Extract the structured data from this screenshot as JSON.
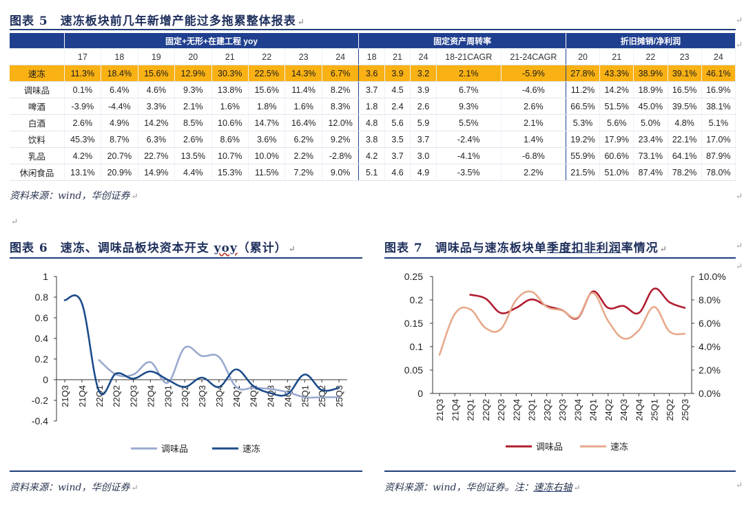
{
  "fig5": {
    "title": "图表 5　速冻板块前几年新增产能过多拖累整体报表",
    "group_headers": [
      "固定+无形+在建工程 yoy",
      "固定资产周转率",
      "折旧摊销/净利润"
    ],
    "col_headers": [
      "17",
      "18",
      "19",
      "20",
      "21",
      "22",
      "23",
      "24",
      "18",
      "21",
      "24",
      "18-21CAGR",
      "21-24CAGR",
      "20",
      "21",
      "22",
      "23",
      "24"
    ],
    "rows": [
      {
        "label": "速冻",
        "cells": [
          "11.3%",
          "18.4%",
          "15.6%",
          "12.9%",
          "30.3%",
          "22.5%",
          "14.3%",
          "6.7%",
          "3.6",
          "3.9",
          "3.2",
          "2.1%",
          "-5.9%",
          "27.8%",
          "43.3%",
          "38.9%",
          "39.1%",
          "46.1%"
        ]
      },
      {
        "label": "调味品",
        "cells": [
          "0.1%",
          "6.4%",
          "4.6%",
          "9.3%",
          "13.8%",
          "15.6%",
          "11.4%",
          "8.2%",
          "3.7",
          "4.5",
          "3.9",
          "6.7%",
          "-4.6%",
          "11.2%",
          "14.2%",
          "18.9%",
          "16.5%",
          "16.9%"
        ]
      },
      {
        "label": "啤酒",
        "cells": [
          "-3.9%",
          "-4.4%",
          "3.3%",
          "2.1%",
          "1.6%",
          "1.8%",
          "1.6%",
          "8.3%",
          "1.8",
          "2.4",
          "2.6",
          "9.3%",
          "2.6%",
          "66.5%",
          "51.5%",
          "45.0%",
          "39.5%",
          "38.1%"
        ]
      },
      {
        "label": "白酒",
        "cells": [
          "2.6%",
          "4.9%",
          "14.2%",
          "8.5%",
          "10.6%",
          "14.7%",
          "16.4%",
          "12.0%",
          "4.8",
          "5.6",
          "5.9",
          "5.5%",
          "2.1%",
          "5.3%",
          "5.6%",
          "5.0%",
          "4.8%",
          "5.1%"
        ]
      },
      {
        "label": "饮料",
        "cells": [
          "45.3%",
          "8.7%",
          "6.3%",
          "2.6%",
          "8.6%",
          "3.6%",
          "6.2%",
          "9.2%",
          "3.8",
          "3.5",
          "3.7",
          "-2.4%",
          "1.4%",
          "19.2%",
          "17.9%",
          "23.4%",
          "22.1%",
          "17.0%"
        ]
      },
      {
        "label": "乳品",
        "cells": [
          "4.2%",
          "20.7%",
          "22.7%",
          "13.5%",
          "10.7%",
          "10.0%",
          "2.2%",
          "-2.8%",
          "4.2",
          "3.7",
          "3.0",
          "-4.1%",
          "-6.8%",
          "55.9%",
          "60.6%",
          "73.1%",
          "64.1%",
          "87.9%"
        ]
      },
      {
        "label": "休闲食品",
        "cells": [
          "13.1%",
          "20.9%",
          "14.9%",
          "4.4%",
          "15.3%",
          "11.5%",
          "7.2%",
          "9.0%",
          "5.1",
          "4.6",
          "4.9",
          "-3.5%",
          "2.2%",
          "21.5%",
          "51.0%",
          "87.4%",
          "78.2%",
          "78.0%"
        ]
      }
    ],
    "source": "资料来源：wind，华创证券",
    "highlight_color": "#f9b114",
    "header_color": "#1f3f8f"
  },
  "fig6": {
    "title_prefix": "图表 6　速冻、调味品板块资本开支 ",
    "title_yoy": "yoy",
    "title_suffix": "（累计）",
    "source": "资料来源：wind，华创证券"
  },
  "fig7": {
    "title_prefix": "图表 7　调味品与速冻板块单",
    "title_link": "季度扣非利润",
    "title_suffix": "率情况",
    "source_prefix": "资料来源：wind，华创证券。注：",
    "source_link": "速冻右轴"
  },
  "return_mark": "↵",
  "chart_data": [
    {
      "type": "line",
      "title": "速冻、调味品板块资本开支 yoy（累计）",
      "categories": [
        "21Q3",
        "21Q4",
        "22Q1",
        "22Q2",
        "22Q3",
        "22Q4",
        "23Q1",
        "23Q2",
        "23Q3",
        "23Q4",
        "24Q1",
        "24Q2",
        "24Q3",
        "24Q4",
        "25Q1",
        "25Q2",
        "25Q3"
      ],
      "ylim": [
        -0.4,
        1
      ],
      "yticks": [
        "1",
        "0.8",
        "0.6",
        "0.4",
        "0.2",
        "0",
        "-0.2",
        "-0.4"
      ],
      "series": [
        {
          "name": "调味品",
          "color": "#9aa9cf",
          "values": [
            null,
            null,
            0.19,
            0.05,
            0.05,
            0.17,
            -0.03,
            0.31,
            0.23,
            0.22,
            -0.07,
            -0.08,
            -0.09,
            -0.12,
            -0.17,
            -0.17,
            -0.17
          ]
        },
        {
          "name": "速冻",
          "color": "#1b4b8a",
          "values": [
            0.77,
            0.74,
            -0.11,
            0.06,
            0.01,
            0.08,
            0.0,
            -0.07,
            0.02,
            -0.07,
            0.1,
            -0.06,
            -0.13,
            -0.14,
            0.05,
            -0.1,
            -0.08
          ]
        }
      ]
    },
    {
      "type": "line",
      "title": "调味品与速冻板块单季度扣非利润率情况",
      "categories": [
        "21Q3",
        "21Q4",
        "22Q1",
        "22Q2",
        "22Q3",
        "22Q4",
        "23Q1",
        "23Q2",
        "23Q3",
        "23Q4",
        "24Q1",
        "24Q2",
        "24Q3",
        "24Q4",
        "25Q1",
        "25Q2",
        "25Q3"
      ],
      "ylim_left": [
        0,
        0.25
      ],
      "yticks_left": [
        "0.25",
        "0.2",
        "0.15",
        "0.1",
        "0.05",
        "0"
      ],
      "ylim_right": [
        0,
        10
      ],
      "yticks_right": [
        "10.0%",
        "8.0%",
        "6.0%",
        "4.0%",
        "2.0%",
        "0.0%"
      ],
      "series": [
        {
          "name": "调味品",
          "axis": "left",
          "color": "#b01c2e",
          "values": [
            null,
            null,
            0.211,
            0.203,
            0.172,
            0.183,
            0.201,
            0.187,
            0.178,
            0.161,
            0.218,
            0.183,
            0.187,
            0.172,
            0.224,
            0.195,
            0.183
          ]
        },
        {
          "name": "速冻",
          "axis": "right",
          "color": "#e7a98b",
          "values": [
            3.3,
            6.8,
            7.2,
            5.6,
            5.5,
            8.0,
            8.7,
            7.4,
            7.1,
            6.5,
            8.6,
            6.2,
            4.7,
            5.4,
            7.4,
            5.3,
            5.1
          ]
        }
      ]
    }
  ]
}
